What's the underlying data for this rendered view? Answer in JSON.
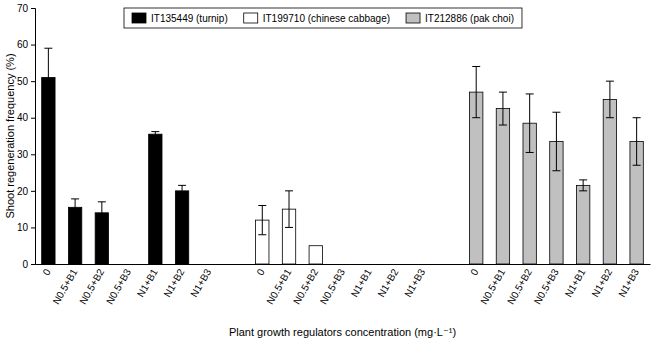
{
  "chart_data": {
    "type": "bar",
    "x_label": "Plant growth regulators concentration (mg·L⁻¹)",
    "y_label": "Shoot regeneration frequency (%)",
    "categories": [
      "0",
      "N0.5+B1",
      "N0.5+B2",
      "N0.5+B3",
      "N1+B1",
      "N1+B2",
      "N1+B3",
      null,
      "0",
      "N0.5+B1",
      "N0.5+B2",
      "N0.5+B3",
      "N1+B1",
      "N1+B2",
      "N1+B3",
      null,
      "0",
      "N0.5+B1",
      "N0.5+B2",
      "N0.5+B3",
      "N1+B1",
      "N1+B2",
      "N1+B3"
    ],
    "series": [
      {
        "name": "IT135449 (turnip)",
        "color": "#000000",
        "values": [
          51,
          15.5,
          14,
          0,
          35.5,
          20,
          0,
          null,
          null,
          null,
          null,
          null,
          null,
          null,
          null,
          null,
          null,
          null,
          null,
          null,
          null,
          null,
          null
        ],
        "errors": [
          8,
          2.3,
          3,
          0,
          0.7,
          1.5,
          0,
          null,
          null,
          null,
          null,
          null,
          null,
          null,
          null,
          null,
          null,
          null,
          null,
          null,
          null,
          null,
          null
        ]
      },
      {
        "name": "IT199710 (chinese cabbage)",
        "color": "#ffffff",
        "values": [
          null,
          null,
          null,
          null,
          null,
          null,
          null,
          null,
          12,
          15,
          5,
          0,
          0,
          0,
          0,
          null,
          null,
          null,
          null,
          null,
          null,
          null,
          null
        ],
        "errors": [
          null,
          null,
          null,
          null,
          null,
          null,
          null,
          null,
          4,
          5,
          0,
          0,
          0,
          0,
          0,
          null,
          null,
          null,
          null,
          null,
          null,
          null,
          null
        ]
      },
      {
        "name": "IT212886 (pak choi)",
        "color": "#c0c0c0",
        "values": [
          null,
          null,
          null,
          null,
          null,
          null,
          null,
          null,
          null,
          null,
          null,
          null,
          null,
          null,
          null,
          null,
          47,
          42.5,
          38.5,
          33.5,
          21.5,
          45,
          33.5
        ],
        "errors": [
          null,
          null,
          null,
          null,
          null,
          null,
          null,
          null,
          null,
          null,
          null,
          null,
          null,
          null,
          null,
          null,
          7,
          4.5,
          8,
          8,
          1.5,
          5,
          6.5
        ]
      }
    ],
    "ylim": [
      0,
      70
    ],
    "yticks": [
      0,
      10,
      20,
      30,
      40,
      50,
      60,
      70
    ],
    "legend": "top",
    "grid": false
  }
}
